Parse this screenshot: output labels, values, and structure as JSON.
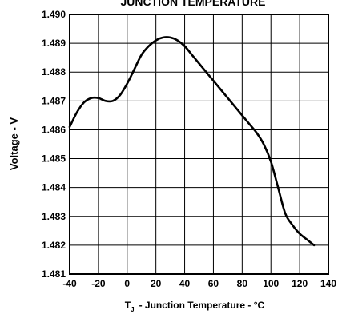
{
  "chart_data": {
    "type": "line",
    "title": "JUNCTION TEMPERATURE",
    "ylabel": "Voltage - V",
    "xlabel_symbol": "T",
    "xlabel_subscript": "J",
    "xlabel_text": "- Junction Temperature - °C",
    "xlim": [
      -40,
      140
    ],
    "ylim": [
      1.481,
      1.49
    ],
    "x_ticks": [
      -40,
      -20,
      0,
      20,
      40,
      60,
      80,
      100,
      120,
      140
    ],
    "y_ticks": [
      1.481,
      1.482,
      1.483,
      1.484,
      1.485,
      1.486,
      1.487,
      1.488,
      1.489,
      1.49
    ],
    "x_tick_labels": [
      "-40",
      "-20",
      "0",
      "20",
      "40",
      "60",
      "80",
      "100",
      "120",
      "140"
    ],
    "y_tick_labels": [
      "1.481",
      "1.482",
      "1.483",
      "1.484",
      "1.485",
      "1.486",
      "1.487",
      "1.488",
      "1.489",
      "1.490"
    ],
    "grid": true,
    "series": [
      {
        "x": [
          -40,
          -35,
          -30,
          -25,
          -20,
          -15,
          -10,
          -5,
          0,
          5,
          10,
          15,
          20,
          25,
          30,
          35,
          40,
          45,
          50,
          55,
          60,
          65,
          70,
          75,
          80,
          85,
          90,
          95,
          100,
          105,
          110,
          115,
          120,
          125,
          130
        ],
        "y": [
          1.4861,
          1.4866,
          1.48695,
          1.4871,
          1.4871,
          1.487,
          1.487,
          1.4872,
          1.4876,
          1.4881,
          1.4886,
          1.4889,
          1.4891,
          1.4892,
          1.4892,
          1.4891,
          1.4889,
          1.4886,
          1.4883,
          1.488,
          1.4877,
          1.4874,
          1.4871,
          1.4868,
          1.4865,
          1.4862,
          1.4859,
          1.4855,
          1.4849,
          1.484,
          1.4831,
          1.4827,
          1.4824,
          1.4822,
          1.482
        ]
      }
    ]
  }
}
